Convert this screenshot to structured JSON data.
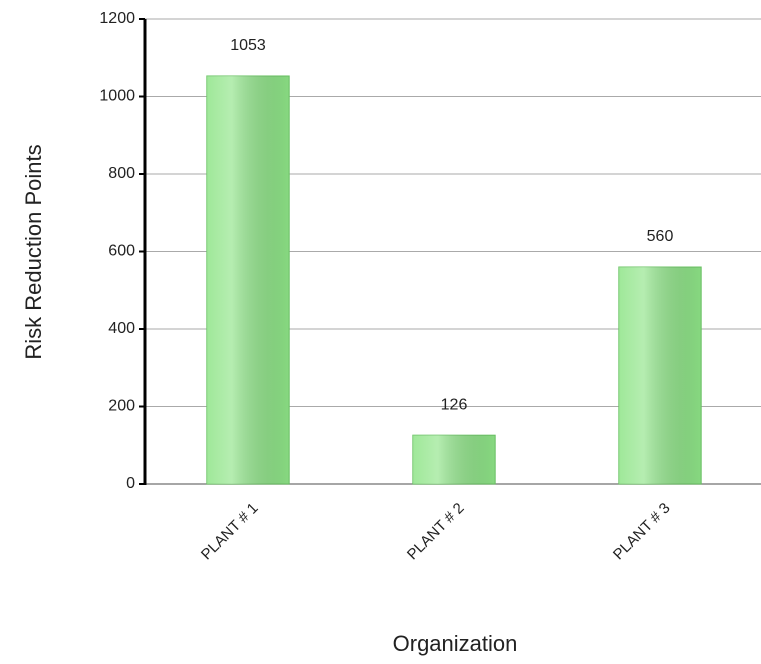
{
  "chart_data": {
    "type": "bar",
    "categories": [
      "PLANT # 1",
      "PLANT # 2",
      "PLANT # 3"
    ],
    "values": [
      1053,
      126,
      560
    ],
    "color": "#8ee487",
    "ylim": [
      0,
      1200
    ],
    "yticks": [
      0,
      200,
      400,
      600,
      800,
      1000,
      1200
    ],
    "grid": true,
    "ylabel": "Risk Reduction Points",
    "xlabel": "Organization"
  }
}
